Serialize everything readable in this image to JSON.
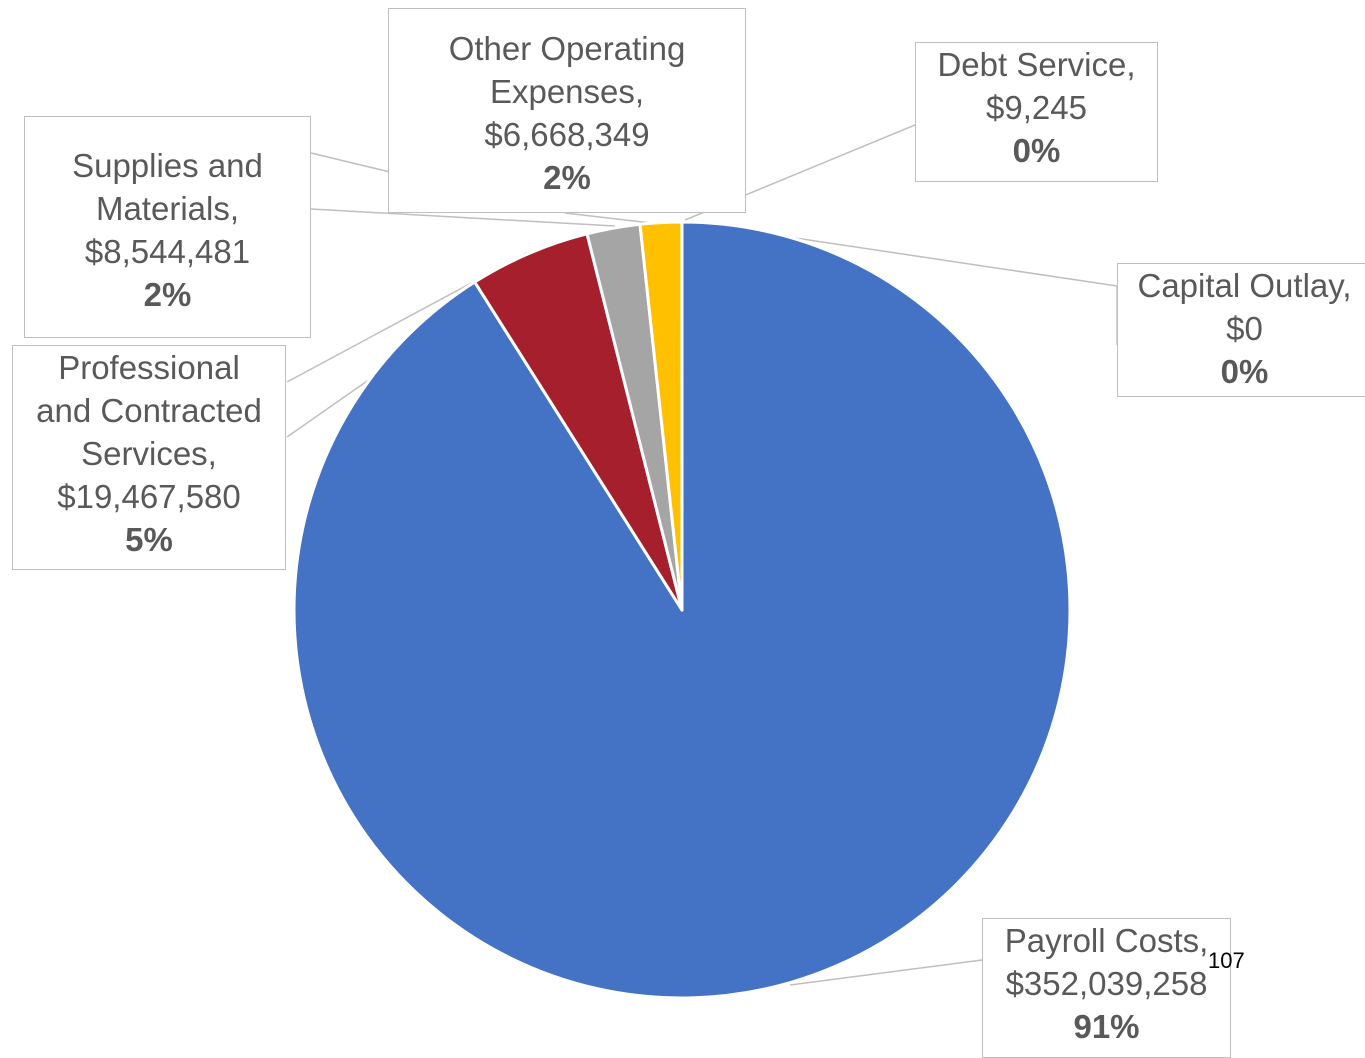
{
  "chart_data": {
    "type": "pie",
    "start_angle_deg": 0,
    "direction": "clockwise",
    "slices": [
      {
        "category": "Payroll Costs",
        "value": 352039258,
        "value_label": "$352,039,258",
        "percent_label": "91%",
        "color": "#4472c4"
      },
      {
        "category": "Professional and Contracted Services",
        "value": 19467580,
        "value_label": "$19,467,580",
        "percent_label": "5%",
        "color": "#a51f2d"
      },
      {
        "category": "Supplies and Materials",
        "value": 8544481,
        "value_label": "$8,544,481",
        "percent_label": "2%",
        "color": "#a5a5a5"
      },
      {
        "category": "Other Operating Expenses",
        "value": 6668349,
        "value_label": "$6,668,349",
        "percent_label": "2%",
        "color": "#ffc000"
      },
      {
        "category": "Debt Service",
        "value": 9245,
        "value_label": "$9,245",
        "percent_label": "0%",
        "color": "#5b9bd5"
      },
      {
        "category": "Capital Outlay",
        "value": 0,
        "value_label": "$0",
        "percent_label": "0%",
        "color": "#70ad47"
      }
    ]
  },
  "labels": {
    "payroll": {
      "lines": [
        "Payroll Costs,",
        "$352,039,258"
      ],
      "pct": "91%"
    },
    "professional": {
      "lines": [
        "Professional",
        "and Contracted",
        "Services,",
        "$19,467,580"
      ],
      "pct": "5%"
    },
    "supplies": {
      "lines": [
        "Supplies and",
        "Materials,",
        "$8,544,481"
      ],
      "pct": "2%"
    },
    "other": {
      "lines": [
        "Other Operating",
        "Expenses,",
        "$6,668,349"
      ],
      "pct": "2%"
    },
    "debt": {
      "lines": [
        "Debt Service,",
        "$9,245"
      ],
      "pct": "0%"
    },
    "capital": {
      "lines": [
        "Capital Outlay,",
        "$0"
      ],
      "pct": "0%"
    }
  },
  "page_number": "107"
}
